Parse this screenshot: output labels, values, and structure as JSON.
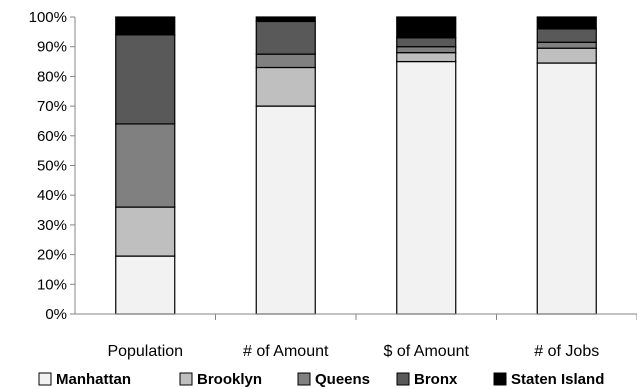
{
  "chart_data": {
    "type": "bar",
    "stacked": "percent",
    "title": "",
    "xlabel": "",
    "ylabel": "",
    "ylim": [
      0,
      100
    ],
    "y_ticks": [
      "0%",
      "10%",
      "20%",
      "30%",
      "40%",
      "50%",
      "60%",
      "70%",
      "80%",
      "90%",
      "100%"
    ],
    "categories": [
      "Population",
      "# of Amount",
      "$ of Amount",
      "# of Jobs"
    ],
    "grid": false,
    "legend_position": "bottom",
    "series": [
      {
        "name": "Manhattan",
        "color": "#f2f2f2",
        "values": [
          19.5,
          70,
          85,
          84.5
        ]
      },
      {
        "name": "Brooklyn",
        "color": "#bfbfbf",
        "values": [
          16.5,
          13,
          3,
          5
        ]
      },
      {
        "name": "Queens",
        "color": "#808080",
        "values": [
          28,
          4.5,
          2,
          2
        ]
      },
      {
        "name": "Bronx",
        "color": "#595959",
        "values": [
          30,
          11,
          3,
          4.5
        ]
      },
      {
        "name": "Staten Island",
        "color": "#000000",
        "values": [
          6,
          1.5,
          7,
          4
        ]
      }
    ]
  }
}
